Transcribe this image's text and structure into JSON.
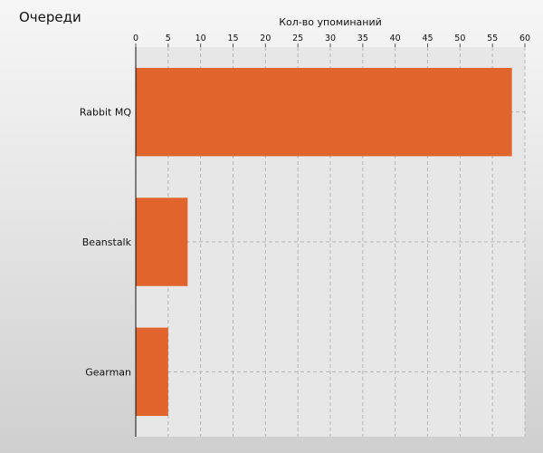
{
  "title": "Очереди",
  "chart_data": {
    "type": "bar",
    "orientation": "horizontal",
    "title": "Очереди",
    "xlabel": "Кол-во упоминаний",
    "xlabel_position": "top",
    "categories": [
      "Rabbit MQ",
      "Beanstalk",
      "Gearman"
    ],
    "values": [
      58,
      8,
      5
    ],
    "xlim": [
      0,
      60
    ],
    "xticks": [
      0,
      5,
      10,
      15,
      20,
      25,
      30,
      35,
      40,
      45,
      50,
      55,
      60
    ],
    "grid": true,
    "legend": "none",
    "bar_color": "#e0642c"
  }
}
